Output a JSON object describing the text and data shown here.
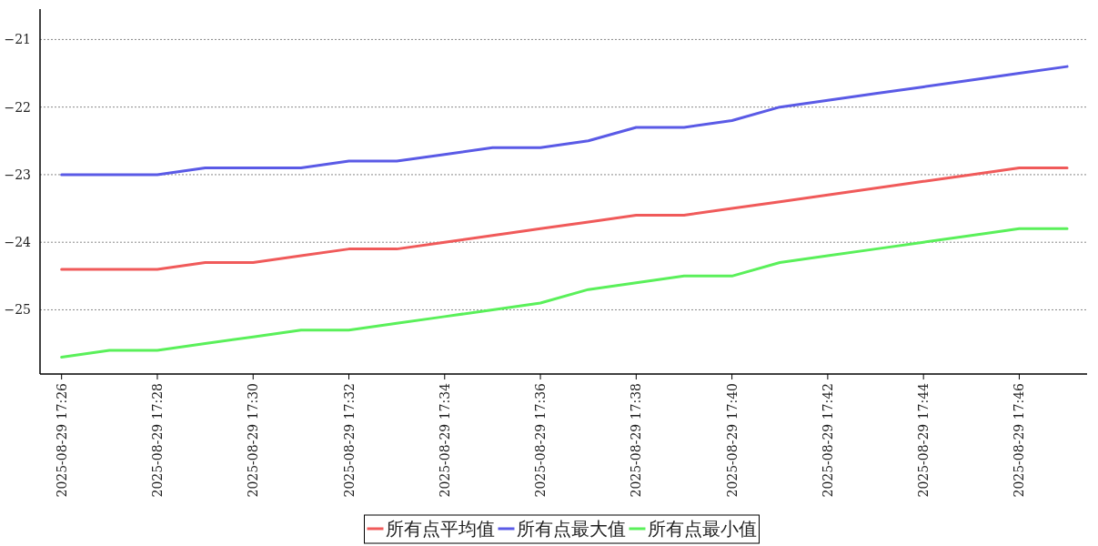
{
  "chart_data": {
    "type": "line",
    "x": [
      "2025-08-29T17:26",
      "2025-08-29T17:27",
      "2025-08-29T17:28",
      "2025-08-29T17:29",
      "2025-08-29T17:30",
      "2025-08-29T17:31",
      "2025-08-29T17:32",
      "2025-08-29T17:33",
      "2025-08-29T17:34",
      "2025-08-29T17:35",
      "2025-08-29T17:36",
      "2025-08-29T17:37",
      "2025-08-29T17:38",
      "2025-08-29T17:39",
      "2025-08-29T17:40",
      "2025-08-29T17:41",
      "2025-08-29T17:42",
      "2025-08-29T17:43",
      "2025-08-29T17:44",
      "2025-08-29T17:45",
      "2025-08-29T17:46",
      "2025-08-29T17:47"
    ],
    "series": [
      {
        "name": "所有点平均值",
        "color": "#f05a5a",
        "values": [
          -24.4,
          -24.4,
          -24.4,
          -24.3,
          -24.3,
          -24.2,
          -24.1,
          -24.1,
          -24.0,
          -23.9,
          -23.8,
          -23.7,
          -23.6,
          -23.6,
          -23.5,
          -23.4,
          -23.3,
          -23.2,
          -23.1,
          -23.0,
          -22.9,
          -22.9
        ]
      },
      {
        "name": "所有点最大值",
        "color": "#5a5ae6",
        "values": [
          -23.0,
          -23.0,
          -23.0,
          -22.9,
          -22.9,
          -22.9,
          -22.8,
          -22.8,
          -22.7,
          -22.6,
          -22.6,
          -22.5,
          -22.3,
          -22.3,
          -22.2,
          -22.0,
          -21.9,
          -21.8,
          -21.7,
          -21.6,
          -21.5,
          -21.4
        ]
      },
      {
        "name": "所有点最小值",
        "color": "#5af05a",
        "values": [
          -25.7,
          -25.6,
          -25.6,
          -25.5,
          -25.4,
          -25.3,
          -25.3,
          -25.2,
          -25.1,
          -25.0,
          -24.9,
          -24.7,
          -24.6,
          -24.5,
          -24.5,
          -24.3,
          -24.2,
          -24.1,
          -24.0,
          -23.9,
          -23.8,
          -23.8
        ]
      }
    ],
    "xlim": [
      "2025-08-29T17:25:33",
      "2025-08-29T17:47:25"
    ],
    "xticks": [
      {
        "value": "2025-08-29T17:26",
        "label": "2025-08-29 17:26"
      },
      {
        "value": "2025-08-29T17:28",
        "label": "2025-08-29 17:28"
      },
      {
        "value": "2025-08-29T17:30",
        "label": "2025-08-29 17:30"
      },
      {
        "value": "2025-08-29T17:32",
        "label": "2025-08-29 17:32"
      },
      {
        "value": "2025-08-29T17:34",
        "label": "2025-08-29 17:34"
      },
      {
        "value": "2025-08-29T17:36",
        "label": "2025-08-29 17:36"
      },
      {
        "value": "2025-08-29T17:38",
        "label": "2025-08-29 17:38"
      },
      {
        "value": "2025-08-29T17:40",
        "label": "2025-08-29 17:40"
      },
      {
        "value": "2025-08-29T17:42",
        "label": "2025-08-29 17:42"
      },
      {
        "value": "2025-08-29T17:44",
        "label": "2025-08-29 17:44"
      },
      {
        "value": "2025-08-29T17:46",
        "label": "2025-08-29 17:46"
      }
    ],
    "ylim": [
      -25.95,
      -20.55
    ],
    "yticks": [
      {
        "value": -25,
        "label": "−25"
      },
      {
        "value": -24,
        "label": "−24"
      },
      {
        "value": -23,
        "label": "−23"
      },
      {
        "value": -22,
        "label": "−22"
      },
      {
        "value": -21,
        "label": "−21"
      }
    ],
    "grid": "y",
    "legend": "bottom",
    "line_style": "solid"
  }
}
